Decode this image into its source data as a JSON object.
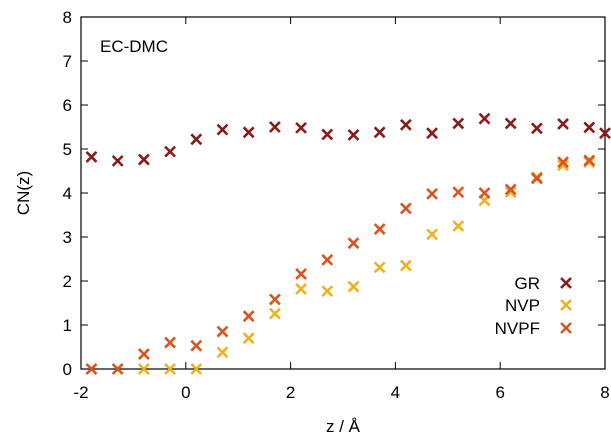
{
  "chart_data": {
    "type": "scatter",
    "title": "",
    "xlabel": "z / Å",
    "ylabel": "CN(z)",
    "xlim": [
      -2,
      8
    ],
    "ylim": [
      0,
      8
    ],
    "xticks": [
      -2,
      0,
      2,
      4,
      6,
      8
    ],
    "yticks": [
      0,
      1,
      2,
      3,
      4,
      5,
      6,
      7,
      8
    ],
    "grid": false,
    "legend_position": "bottom-right",
    "annotation": "EC-DMC",
    "series": [
      {
        "name": "GR",
        "color": "#8b1a1a",
        "marker": "x",
        "x": [
          -1.8,
          -1.3,
          -0.8,
          -0.3,
          0.2,
          0.7,
          1.2,
          1.7,
          2.2,
          2.7,
          3.2,
          3.7,
          4.2,
          4.7,
          5.2,
          5.7,
          6.2,
          6.7,
          7.2,
          7.7,
          8.0
        ],
        "y": [
          4.82,
          4.73,
          4.76,
          4.94,
          5.22,
          5.44,
          5.38,
          5.5,
          5.48,
          5.33,
          5.32,
          5.38,
          5.55,
          5.36,
          5.58,
          5.69,
          5.58,
          5.47,
          5.57,
          5.49,
          5.36
        ]
      },
      {
        "name": "NVP",
        "color": "#f0b020",
        "marker": "x",
        "x": [
          -1.8,
          -1.3,
          -0.8,
          -0.3,
          0.2,
          0.7,
          1.2,
          1.7,
          2.2,
          2.7,
          3.2,
          3.7,
          4.2,
          4.7,
          5.2,
          5.7,
          6.2,
          6.7,
          7.2,
          7.7
        ],
        "y": [
          0.0,
          0.0,
          0.0,
          0.0,
          0.0,
          0.38,
          0.7,
          1.26,
          1.82,
          1.77,
          1.87,
          2.31,
          2.35,
          3.06,
          3.25,
          3.83,
          4.02,
          4.36,
          4.63,
          4.7
        ]
      },
      {
        "name": "NVPF",
        "color": "#d9541e",
        "marker": "x",
        "x": [
          -1.8,
          -1.3,
          -0.8,
          -0.3,
          0.2,
          0.7,
          1.2,
          1.7,
          2.2,
          2.7,
          3.2,
          3.7,
          4.2,
          4.7,
          5.2,
          5.7,
          6.2,
          6.7,
          7.2,
          7.7
        ],
        "y": [
          0.0,
          0.0,
          0.34,
          0.6,
          0.53,
          0.85,
          1.2,
          1.58,
          2.16,
          2.48,
          2.86,
          3.18,
          3.65,
          3.98,
          4.02,
          4.0,
          4.08,
          4.33,
          4.7,
          4.74
        ]
      }
    ]
  }
}
